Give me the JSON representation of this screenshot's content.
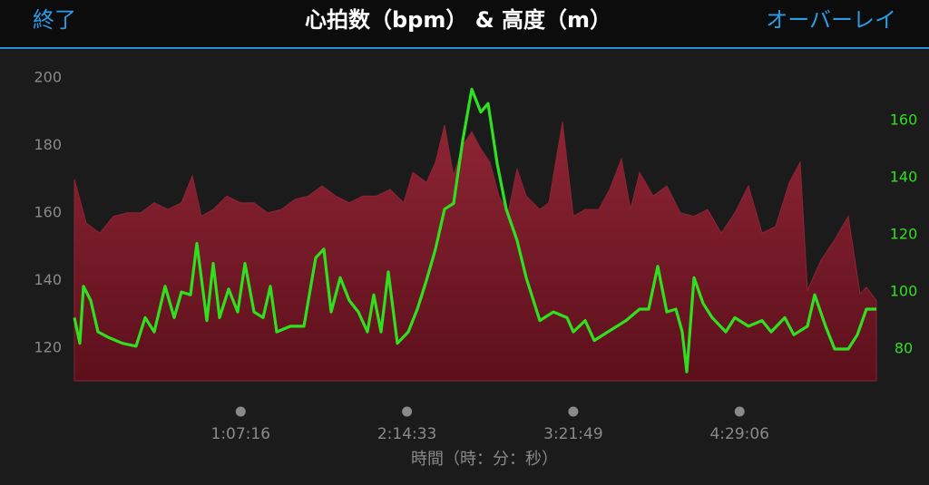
{
  "header": {
    "left_button": "終了",
    "right_button": "オーバーレイ"
  },
  "chart_data": {
    "type": "area",
    "title": "心拍数（bpm） & 高度（m）",
    "x_label": "時間（時：分：秒）",
    "xlim": [
      0,
      19466
    ],
    "xticks": [
      {
        "value": 4036,
        "label": "1:07:16"
      },
      {
        "value": 8073,
        "label": "2:14:33"
      },
      {
        "value": 12109,
        "label": "3:21:49"
      },
      {
        "value": 16146,
        "label": "4:29:06"
      }
    ],
    "ylim": [
      110.3,
      202.1
    ],
    "yticks": [
      120,
      140,
      160,
      180,
      200
    ],
    "y2lim": [
      68.9,
      177.5
    ],
    "y2ticks": [
      80,
      100,
      120,
      140,
      160
    ],
    "series": [
      {
        "mark": "area",
        "color": "#8c2433",
        "x": [
          0,
          286,
          617,
          947,
          1277,
          1607,
          1938,
          2268,
          2598,
          2862,
          3083,
          3369,
          3699,
          4030,
          4360,
          4690,
          5021,
          5351,
          5681,
          6011,
          6342,
          6672,
          7002,
          7333,
          7663,
          7993,
          8213,
          8544,
          8764,
          8984,
          9204,
          9425,
          9645,
          9865,
          10085,
          10305,
          10526,
          10746,
          10966,
          11296,
          11516,
          11847,
          12111,
          12397,
          12728,
          12992,
          13278,
          13498,
          13719,
          14049,
          14379,
          14709,
          15040,
          15370,
          15700,
          16031,
          16361,
          16691,
          17021,
          17352,
          17616,
          17792,
          18122,
          18453,
          18783,
          19069,
          19223,
          19466
        ],
        "values": [
          170,
          157,
          154,
          159,
          160,
          160,
          163,
          161,
          163,
          171,
          159,
          161,
          165,
          163,
          163,
          160,
          161,
          164,
          165,
          168,
          165,
          163,
          165,
          165,
          167,
          163,
          172,
          169,
          175,
          186,
          171,
          180,
          184,
          179,
          175,
          165,
          160,
          173,
          165,
          161,
          163,
          187,
          159,
          161,
          161,
          167,
          176,
          161,
          172,
          165,
          168,
          160,
          159,
          161,
          154,
          160,
          168,
          154,
          156,
          169,
          175,
          137,
          146,
          152,
          159,
          136,
          138,
          134
        ]
      },
      {
        "mark": "line",
        "axis": "y2",
        "color": "#2fe01f",
        "x": [
          0,
          132,
          220,
          396,
          573,
          837,
          1167,
          1497,
          1718,
          1938,
          2202,
          2422,
          2598,
          2819,
          2973,
          3215,
          3369,
          3523,
          3743,
          3964,
          4140,
          4360,
          4580,
          4756,
          4910,
          5241,
          5571,
          5857,
          6056,
          6232,
          6452,
          6672,
          6893,
          7113,
          7267,
          7443,
          7619,
          7839,
          8103,
          8324,
          8544,
          8764,
          8984,
          9204,
          9425,
          9645,
          9865,
          10041,
          10261,
          10482,
          10746,
          10966,
          11296,
          11627,
          11957,
          12111,
          12397,
          12617,
          12948,
          13388,
          13719,
          13939,
          14159,
          14379,
          14599,
          14753,
          14864,
          15040,
          15260,
          15480,
          15810,
          16031,
          16361,
          16691,
          16911,
          17242,
          17462,
          17792,
          17968,
          18233,
          18453,
          18783,
          19003,
          19223,
          19466
        ],
        "values": [
          91,
          82,
          102,
          97,
          86,
          84,
          82,
          81,
          91,
          86,
          102,
          91,
          100,
          99,
          117,
          90,
          110,
          91,
          101,
          93,
          110,
          93,
          91,
          102,
          86,
          88,
          88,
          112,
          115,
          93,
          105,
          97,
          93,
          86,
          99,
          86,
          107,
          82,
          86,
          94,
          104,
          115,
          129,
          131,
          153,
          171,
          163,
          166,
          145,
          129,
          118,
          105,
          90,
          93,
          91,
          86,
          90,
          83,
          86,
          90,
          94,
          94,
          109,
          93,
          94,
          86,
          72,
          105,
          96,
          91,
          86,
          91,
          88,
          90,
          86,
          91,
          85,
          88,
          99,
          88,
          80,
          80,
          85,
          94,
          94
        ]
      }
    ]
  }
}
